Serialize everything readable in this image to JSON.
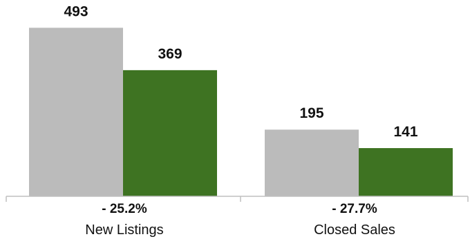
{
  "chart_data": {
    "type": "bar",
    "categories": [
      "New Listings",
      "Closed Sales"
    ],
    "changes": [
      "- 25.2%",
      "- 27.7%"
    ],
    "series": [
      {
        "values": [
          493,
          195
        ],
        "color": "#bbbbbb"
      },
      {
        "values": [
          369,
          141
        ],
        "color": "#3e7322"
      }
    ],
    "ylim": [
      0,
      540
    ],
    "grid": false,
    "legend": "none",
    "axis_color": "#bfbfbf"
  }
}
